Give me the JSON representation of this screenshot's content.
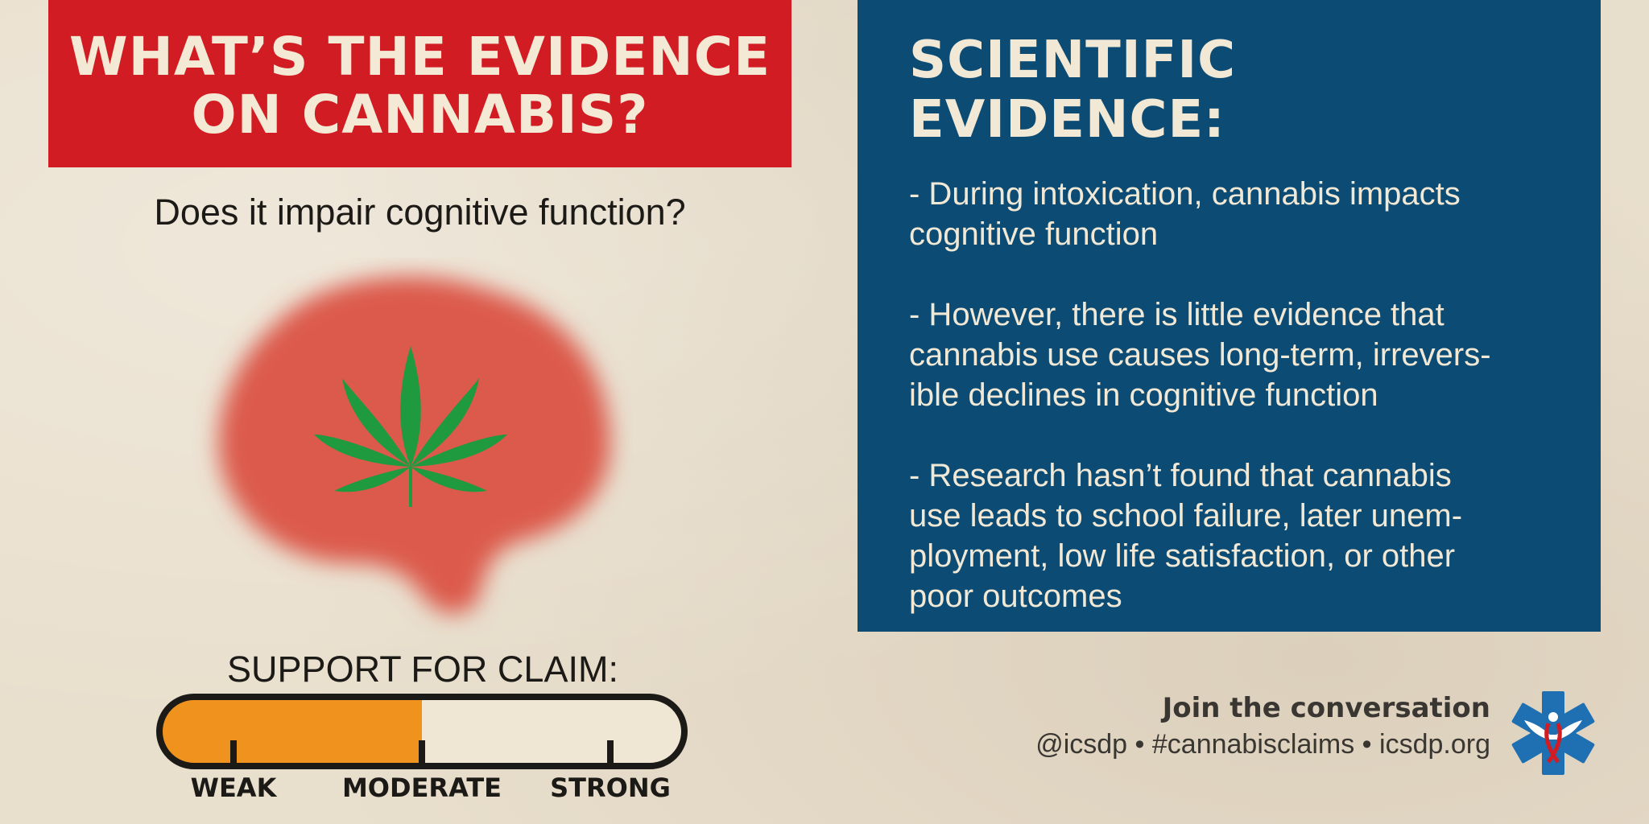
{
  "header": {
    "title_line1": "WHAT’S THE EVIDENCE",
    "title_line2": "ON CANNABIS?"
  },
  "question": "Does it impair cognitive function?",
  "illustration": {
    "icon": "brain-with-cannabis-leaf-icon",
    "brain_color": "#d9534a",
    "leaf_color": "#1f9a3f"
  },
  "support": {
    "title": "SUPPORT FOR CLAIM:",
    "level": 0.5,
    "fill_color": "#f0921e",
    "labels": [
      "WEAK",
      "MODERATE",
      "STRONG"
    ]
  },
  "evidence": {
    "title": "SCIENTIFIC EVIDENCE:",
    "bullets": [
      "- During intoxication, cannabis impacts\ncognitive function",
      "- However, there is little evidence that\ncannabis use causes long-term, irrevers-\nible declines in cognitive function",
      "- Research hasn’t found that cannabis\nuse leads to school failure, later unem-\nployment, low life satisfaction, or other\npoor outcomes"
    ]
  },
  "footer": {
    "join": "Join the conversation",
    "links": "@icsdp • #cannabisclaims • icsdp.org",
    "logo_icon": "star-of-life-icon"
  },
  "colors": {
    "title_red": "#d21c23",
    "evidence_blue": "#0b4b74",
    "cream": "#f1e8d5"
  }
}
